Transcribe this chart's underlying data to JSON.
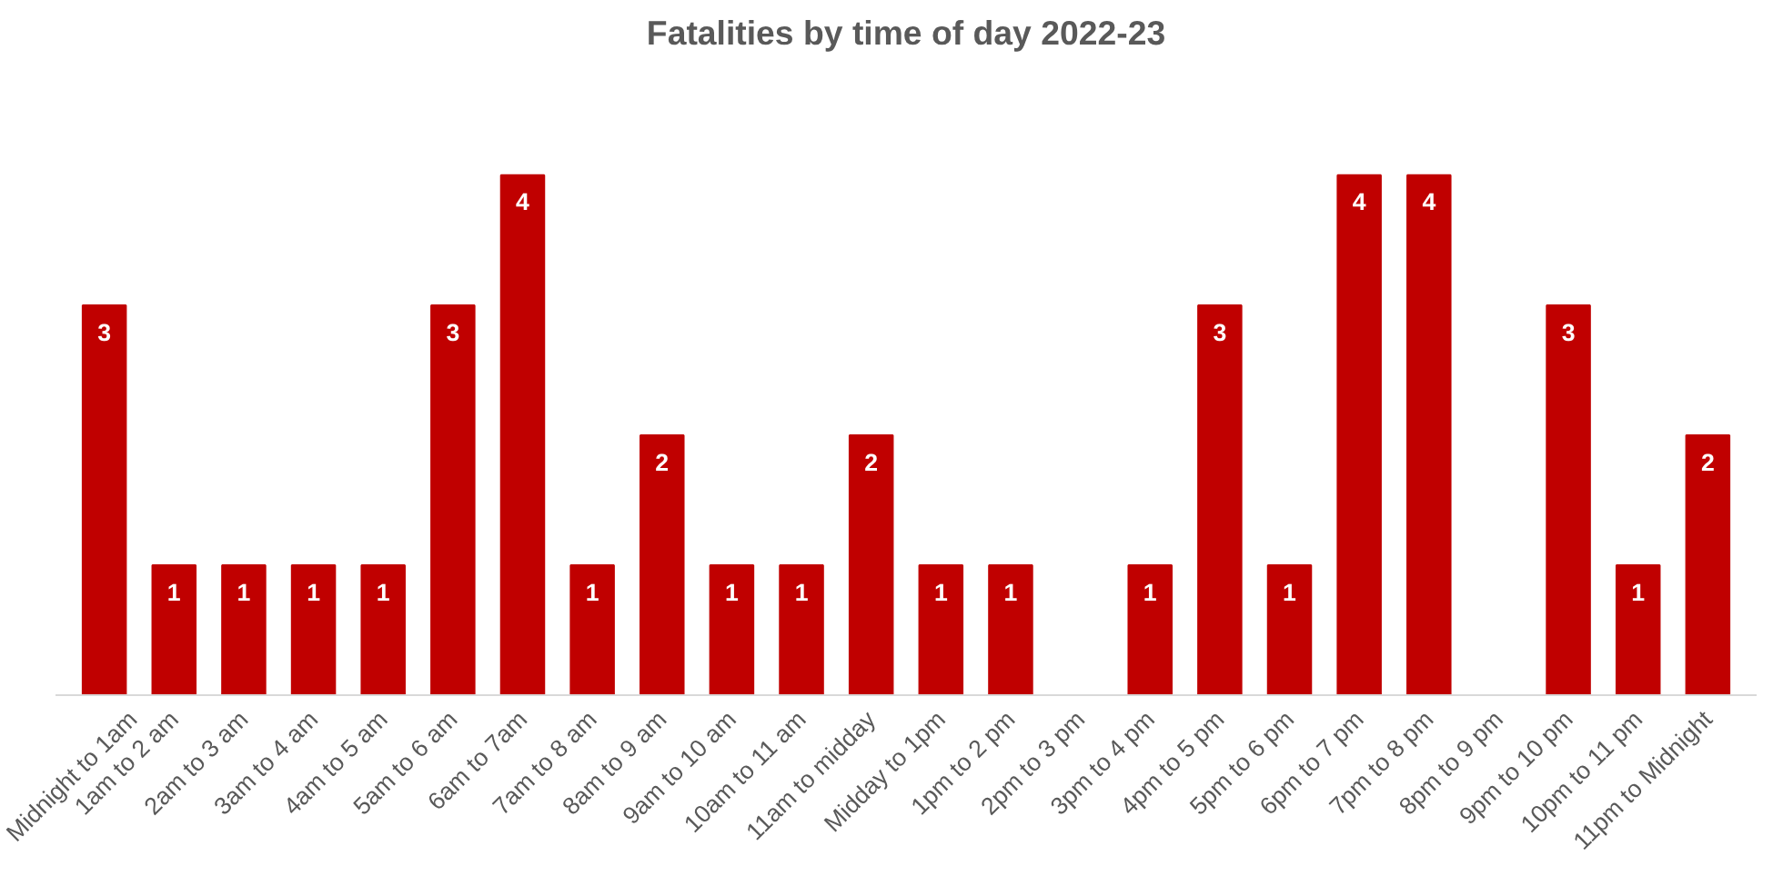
{
  "chart_data": {
    "type": "bar",
    "title": "Fatalities by time of day 2022-23",
    "categories": [
      "Midnight to 1am",
      "1am to 2 am",
      "2am to 3 am",
      "3am to 4 am",
      "4am to 5 am",
      "5am to 6 am",
      "6am to 7am",
      "7am to 8 am",
      "8am to 9 am",
      "9am to 10 am",
      "10am to 11 am",
      "11am to midday",
      "Midday to 1pm",
      "1pm to 2 pm",
      "2pm to 3 pm",
      "3pm to 4 pm",
      "4pm to 5 pm",
      "5pm to 6 pm",
      "6pm to 7 pm",
      "7pm to 8 pm",
      "8pm to 9 pm",
      "9pm to 10 pm",
      "10pm to 11 pm",
      "11pm to Midnight"
    ],
    "values": [
      3,
      1,
      1,
      1,
      1,
      3,
      4,
      1,
      2,
      1,
      1,
      2,
      1,
      1,
      0,
      1,
      3,
      1,
      4,
      4,
      0,
      3,
      1,
      2
    ],
    "value_labels": [
      "3",
      "1",
      "1",
      "1",
      "1",
      "3",
      "4",
      "1",
      "2",
      "1",
      "1",
      "2",
      "1",
      "1",
      null,
      "1",
      "3",
      "1",
      "4",
      "4",
      null,
      "3",
      "1",
      "2"
    ],
    "color": "#c00000"
  }
}
